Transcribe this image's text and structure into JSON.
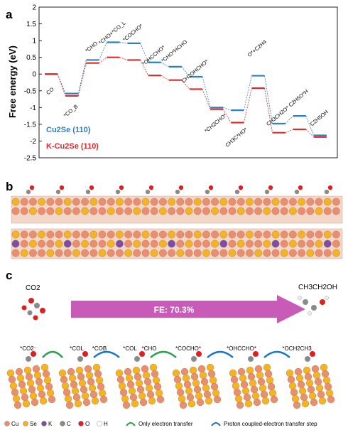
{
  "panels": {
    "a_label": "a",
    "b_label": "b",
    "c_label": "c"
  },
  "chart_data": {
    "type": "line",
    "title": "",
    "xlabel": "",
    "ylabel": "Free energy (eV)",
    "ylim": [
      -2.5,
      2.0
    ],
    "yticks": [
      "2",
      "1.5",
      "1",
      "0.5",
      "0",
      "-0.5",
      "-1",
      "-1.5",
      "-2",
      "-2.5"
    ],
    "ytick_values": [
      2,
      1.5,
      1,
      0.5,
      0,
      -0.5,
      -1,
      -1.5,
      -2,
      -2.5
    ],
    "grid": false,
    "legend_placement": "left",
    "colors": {
      "cu2se": "#2e7fc1",
      "kcu2se": "#e0292b"
    },
    "step_labels": [
      {
        "text": "CO"
      },
      {
        "text": "*CO_B"
      },
      {
        "text": "*CHO"
      },
      {
        "text": "*CHO+*CO_L"
      },
      {
        "text": "*COCHO*"
      },
      {
        "text": "*OHCCHO*"
      },
      {
        "text": "*CHO*HCHO"
      },
      {
        "text": "CH2OHCHO*"
      },
      {
        "text": "*CH2CHO*"
      },
      {
        "text": "CH3C*HO*"
      },
      {
        "text": "O*+C2H4"
      },
      {
        "text": "CH3CH2O*"
      },
      {
        "text": "C2H5O*H"
      },
      {
        "text": "C2H5OH"
      }
    ],
    "series": [
      {
        "name": "Cu2Se (110)",
        "points": [
          {
            "step": 0,
            "y": 0.0
          },
          {
            "step": 1,
            "y": -0.58
          },
          {
            "step": 2,
            "y": 0.42
          },
          {
            "step": 3,
            "y": 0.95
          },
          {
            "step": 4,
            "y": 0.92
          },
          {
            "step": 5,
            "y": 0.35
          },
          {
            "step": 6,
            "y": 0.22
          },
          {
            "step": 7,
            "y": -0.08
          },
          {
            "step": 8,
            "y": -1.0
          },
          {
            "step": 9,
            "y": -1.08
          },
          {
            "step": 10,
            "y": -0.05
          },
          {
            "step": 11,
            "y": -1.48
          },
          {
            "step": 12,
            "y": -1.25
          },
          {
            "step": 13,
            "y": -1.83
          }
        ]
      },
      {
        "name": "K-Cu2Se (110)",
        "points": [
          {
            "step": 0,
            "y": 0.0
          },
          {
            "step": 1,
            "y": -0.65
          },
          {
            "step": 2,
            "y": 0.33
          },
          {
            "step": 3,
            "y": 0.5
          },
          {
            "step": 4,
            "y": 0.42
          },
          {
            "step": 5,
            "y": -0.04
          },
          {
            "step": 6,
            "y": -0.18
          },
          {
            "step": 7,
            "y": -0.45
          },
          {
            "step": 8,
            "y": -1.05
          },
          {
            "step": 9,
            "y": -1.45
          },
          {
            "step": 10,
            "y": -0.42
          },
          {
            "step": 11,
            "y": -1.75
          },
          {
            "step": 12,
            "y": -1.65
          },
          {
            "step": 13,
            "y": -1.88
          }
        ]
      }
    ]
  },
  "panel_c": {
    "fe_label": "FE: 70.3%",
    "co2_label": "CO2",
    "product_label": "CH3CH2OH",
    "intermediates": [
      "*CO2⁻",
      "*COL",
      "*COB",
      "*COL",
      "*CHO",
      "*COCHO*",
      "*OHCCHO*",
      "*OCH2CH3"
    ],
    "legend_elements": [
      "Cu",
      "Se",
      "K",
      "C",
      "O",
      "H"
    ],
    "legend_colors": [
      "#e98f6f",
      "#f2b422",
      "#7b4fa6",
      "#8a8a8a",
      "#e02020",
      "#ffffff"
    ],
    "legend_steps": [
      "Only electron transfer",
      "Proton coupled-electron transfer step"
    ],
    "arrow_colors": {
      "fe": "#c95bb8",
      "electron": "#2f9e4c",
      "proton": "#1f73c4"
    }
  }
}
